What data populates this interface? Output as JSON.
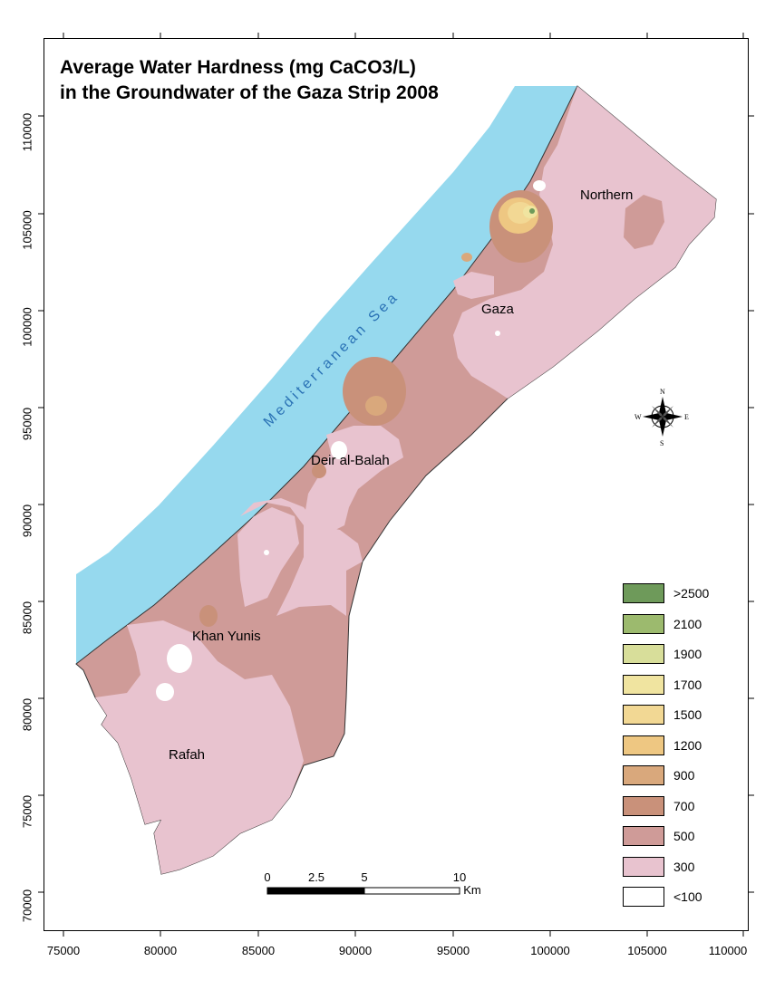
{
  "title": {
    "line1": "Average Water Hardness (mg CaCO3/L)",
    "line2": "in the Groundwater of the Gaza Strip 2008"
  },
  "sea_label": "Mediterranean Sea",
  "places": {
    "northern": "Northern",
    "gaza": "Gaza",
    "deir": "Deir al-Balah",
    "khan": "Khan Yunis",
    "rafah": "Rafah"
  },
  "x_axis": [
    "75000",
    "80000",
    "85000",
    "90000",
    "95000",
    "100000",
    "105000",
    "110000"
  ],
  "y_axis": [
    "110000",
    "105000",
    "100000",
    "95000",
    "90000",
    "85000",
    "80000",
    "75000",
    "70000"
  ],
  "legend": [
    {
      "label": ">2500",
      "color": "#6e9a5a"
    },
    {
      "label": "2100",
      "color": "#9cba6e"
    },
    {
      "label": "1900",
      "color": "#d8de9a"
    },
    {
      "label": "1700",
      "color": "#f0e4a0"
    },
    {
      "label": "1500",
      "color": "#f2d894"
    },
    {
      "label": "1200",
      "color": "#eec782"
    },
    {
      "label": "900",
      "color": "#d9a87c"
    },
    {
      "label": "700",
      "color": "#c9917a"
    },
    {
      "label": "500",
      "color": "#cf9b98"
    },
    {
      "label": "300",
      "color": "#e8c3cf"
    },
    {
      "label": "<100",
      "color": "#ffffff"
    }
  ],
  "scale_bar": {
    "ticks": [
      "0",
      "2.5",
      "5",
      "10"
    ],
    "unit": "Km"
  },
  "compass": {
    "n": "N",
    "s": "S",
    "e": "E",
    "w": "W"
  },
  "colors": {
    "sea": "#96d9ee",
    "sea_text": "#2a72b5",
    "zone_300": "#e8c3cf",
    "zone_500": "#cf9b98"
  }
}
